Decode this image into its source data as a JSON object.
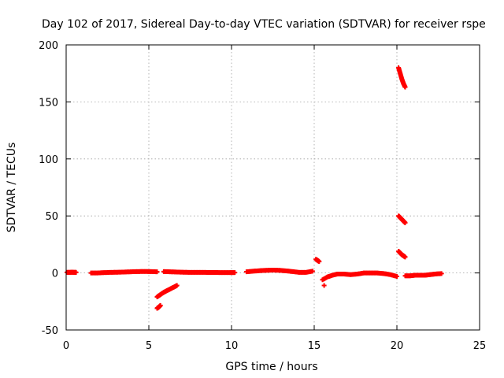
{
  "chart_data": {
    "type": "scatter",
    "title": "Day 102 of 2017, Sidereal Day-to-day VTEC variation (SDTVAR) for receiver rspe",
    "xlabel": "GPS time / hours",
    "ylabel": "SDTVAR / TECUs",
    "xlim": [
      0,
      25
    ],
    "ylim": [
      -50,
      200
    ],
    "xticks": [
      0,
      5,
      10,
      15,
      20,
      25
    ],
    "yticks": [
      -50,
      0,
      50,
      100,
      150,
      200
    ],
    "xtick_labels": [
      "0",
      "5",
      "10",
      "15",
      "20",
      "25"
    ],
    "ytick_labels": [
      "-50",
      "0",
      "50",
      "100",
      "150",
      "200"
    ],
    "grid": true,
    "marker_color": "#ff0000",
    "marker": "plus",
    "segments": [
      {
        "x": [
          0.05,
          0.2,
          0.35,
          0.5,
          0.6
        ],
        "y": [
          0.5,
          0.5,
          0.6,
          0.5,
          0.5
        ]
      },
      {
        "x": [
          1.5,
          1.9,
          2.3,
          2.7,
          3.1,
          3.5,
          3.9,
          4.3,
          4.7,
          5.1,
          5.5
        ],
        "y": [
          0,
          0,
          0.3,
          0.5,
          0.6,
          0.8,
          1.0,
          1.2,
          1.3,
          1.2,
          1.0
        ]
      },
      {
        "x": [
          5.5,
          5.7,
          5.9,
          6.1,
          6.3,
          6.5,
          6.7
        ],
        "y": [
          -21,
          -19,
          -17,
          -15.5,
          -14,
          -12.5,
          -11
        ]
      },
      {
        "x": [
          5.5,
          5.6,
          5.7
        ],
        "y": [
          -31,
          -30,
          -28.5
        ]
      },
      {
        "x": [
          5.9,
          6.3,
          6.7,
          7.1,
          7.5,
          7.9,
          8.3,
          8.7,
          9.1,
          9.5,
          9.9,
          10.2
        ],
        "y": [
          1.2,
          1.0,
          0.8,
          0.6,
          0.5,
          0.5,
          0.5,
          0.4,
          0.4,
          0.3,
          0.3,
          0.3
        ]
      },
      {
        "x": [
          10.9,
          11.3,
          11.7,
          12.1,
          12.5,
          12.9,
          13.3,
          13.7,
          14.1,
          14.5,
          14.9
        ],
        "y": [
          1.0,
          1.5,
          2.0,
          2.3,
          2.5,
          2.3,
          1.8,
          1.2,
          0.5,
          0.5,
          1.5
        ]
      },
      {
        "x": [
          15.1,
          15.2,
          15.3
        ],
        "y": [
          12,
          11,
          10
        ]
      },
      {
        "x": [
          15.6
        ],
        "y": [
          -11
        ]
      },
      {
        "x": [
          15.5,
          15.8,
          16.1,
          16.4,
          16.8,
          17.2,
          17.6,
          18.0,
          18.4,
          18.8,
          19.2,
          19.6,
          20.0
        ],
        "y": [
          -6,
          -3.5,
          -2,
          -1,
          -1,
          -1.5,
          -1,
          0,
          0,
          0,
          -0.5,
          -1.5,
          -3
        ]
      },
      {
        "x": [
          20.1,
          20.2,
          20.3,
          20.4,
          20.5
        ],
        "y": [
          180,
          175,
          170,
          166,
          163
        ]
      },
      {
        "x": [
          20.1,
          20.2,
          20.3,
          20.4,
          20.5
        ],
        "y": [
          50,
          48.5,
          47,
          45.5,
          44
        ]
      },
      {
        "x": [
          20.1,
          20.2,
          20.3,
          20.4,
          20.5
        ],
        "y": [
          19,
          17.5,
          16,
          15,
          14
        ]
      },
      {
        "x": [
          20.5,
          20.8,
          21.1,
          21.4,
          21.7,
          22.0,
          22.3,
          22.7
        ],
        "y": [
          -2.5,
          -2.5,
          -2,
          -2,
          -2,
          -1.5,
          -1,
          -0.5
        ]
      }
    ]
  }
}
